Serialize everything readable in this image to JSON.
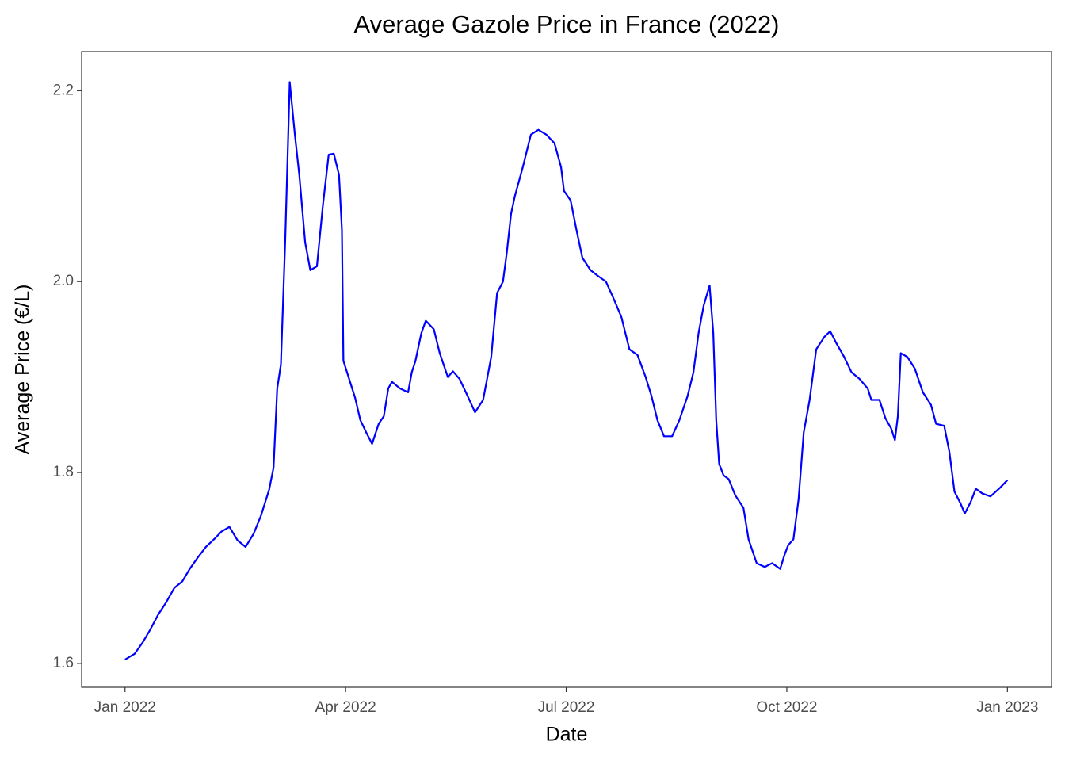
{
  "chart_data": {
    "type": "line",
    "title": "Average Gazole Price in France (2022)",
    "x_label": "Date",
    "y_label": "Average Price (€/L)",
    "x": [
      0,
      0.13,
      0.24,
      0.34,
      0.45,
      0.56,
      0.67,
      0.78,
      0.88,
      0.99,
      1.1,
      1.21,
      1.31,
      1.42,
      1.53,
      1.64,
      1.75,
      1.85,
      1.96,
      2.02,
      2.07,
      2.12,
      2.18,
      2.24,
      2.31,
      2.37,
      2.45,
      2.52,
      2.61,
      2.69,
      2.77,
      2.84,
      2.91,
      2.95,
      2.97,
      3.04,
      3.13,
      3.2,
      3.28,
      3.36,
      3.45,
      3.52,
      3.58,
      3.63,
      3.74,
      3.85,
      3.9,
      3.95,
      4.03,
      4.09,
      4.2,
      4.28,
      4.39,
      4.46,
      4.55,
      4.66,
      4.76,
      4.87,
      4.98,
      5.06,
      5.14,
      5.19,
      5.25,
      5.3,
      5.41,
      5.52,
      5.62,
      5.73,
      5.84,
      5.93,
      5.97,
      6.06,
      6.14,
      6.22,
      6.33,
      6.43,
      6.54,
      6.64,
      6.75,
      6.86,
      6.97,
      7.08,
      7.16,
      7.24,
      7.33,
      7.44,
      7.54,
      7.65,
      7.73,
      7.8,
      7.87,
      7.95,
      8,
      8.04,
      8.08,
      8.14,
      8.21,
      8.3,
      8.41,
      8.48,
      8.59,
      8.7,
      8.8,
      8.91,
      8.97,
      9.02,
      9.09,
      9.16,
      9.23,
      9.31,
      9.4,
      9.51,
      9.59,
      9.67,
      9.78,
      9.88,
      9.99,
      10.1,
      10.15,
      10.26,
      10.34,
      10.42,
      10.47,
      10.51,
      10.55,
      10.64,
      10.74,
      10.85,
      10.96,
      11.03,
      11.14,
      11.21,
      11.28,
      11.36,
      11.42,
      11.5,
      11.57,
      11.66,
      11.77,
      11.9,
      12
    ],
    "series": [
      {
        "name": "Gazole",
        "color": "#0000ff",
        "values": [
          1.604,
          1.61,
          1.622,
          1.635,
          1.651,
          1.664,
          1.679,
          1.686,
          1.699,
          1.711,
          1.722,
          1.73,
          1.738,
          1.743,
          1.729,
          1.722,
          1.736,
          1.755,
          1.782,
          1.805,
          1.888,
          1.913,
          2.046,
          2.209,
          2.154,
          2.112,
          2.041,
          2.012,
          2.016,
          2.079,
          2.133,
          2.134,
          2.112,
          2.054,
          1.917,
          1.9,
          1.878,
          1.855,
          1.842,
          1.83,
          1.851,
          1.859,
          1.888,
          1.895,
          1.888,
          1.884,
          1.905,
          1.917,
          1.946,
          1.959,
          1.95,
          1.925,
          1.9,
          1.906,
          1.898,
          1.88,
          1.863,
          1.876,
          1.921,
          1.988,
          2.0,
          2.029,
          2.071,
          2.089,
          2.12,
          2.154,
          2.159,
          2.154,
          2.145,
          2.12,
          2.095,
          2.085,
          2.054,
          2.025,
          2.012,
          2.006,
          2.0,
          1.983,
          1.963,
          1.929,
          1.923,
          1.9,
          1.88,
          1.855,
          1.838,
          1.838,
          1.855,
          1.88,
          1.905,
          1.946,
          1.975,
          1.996,
          1.946,
          1.855,
          1.809,
          1.797,
          1.793,
          1.776,
          1.763,
          1.73,
          1.705,
          1.701,
          1.705,
          1.699,
          1.714,
          1.724,
          1.73,
          1.772,
          1.842,
          1.876,
          1.929,
          1.942,
          1.948,
          1.936,
          1.921,
          1.905,
          1.898,
          1.888,
          1.876,
          1.876,
          1.857,
          1.846,
          1.834,
          1.859,
          1.925,
          1.921,
          1.909,
          1.884,
          1.871,
          1.851,
          1.849,
          1.822,
          1.78,
          1.768,
          1.757,
          1.769,
          1.783,
          1.778,
          1.775,
          1.784,
          1.792
        ]
      }
    ],
    "xlim": [
      -0.59,
      12.6
    ],
    "xticks": [
      {
        "value": 0,
        "label": "Jan 2022"
      },
      {
        "value": 3,
        "label": "Apr 2022"
      },
      {
        "value": 6,
        "label": "Jul 2022"
      },
      {
        "value": 9,
        "label": "Oct 2022"
      },
      {
        "value": 12,
        "label": "Jan 2023"
      }
    ],
    "ylim": [
      1.575,
      2.241
    ],
    "yticks": [
      1.6,
      {
        "value": 1.8,
        "label": "1.8"
      },
      {
        "value": 2.0,
        "label": "2.0"
      },
      2.2
    ],
    "grid": false
  }
}
